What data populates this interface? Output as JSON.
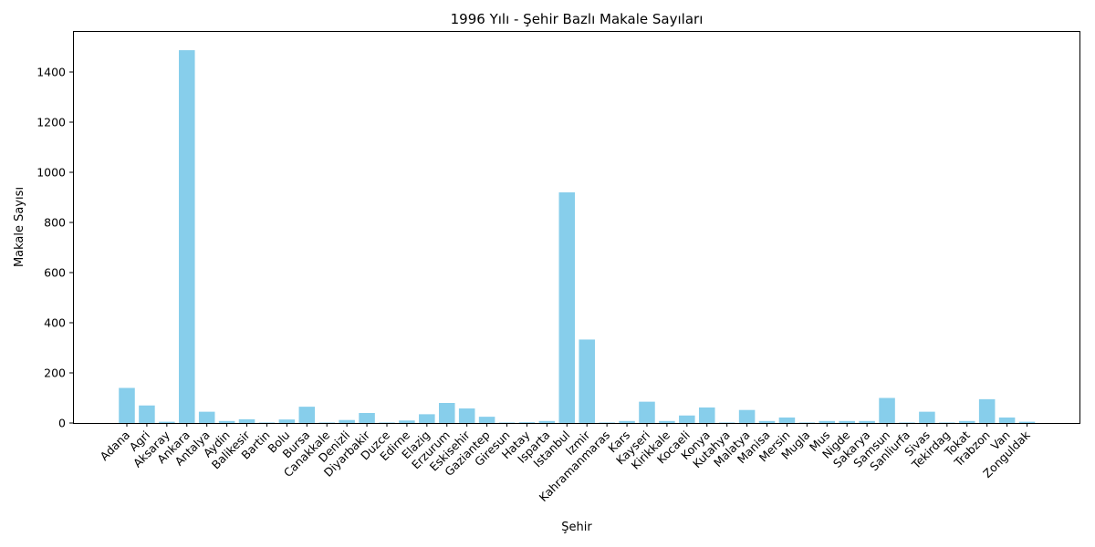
{
  "chart_data": {
    "type": "bar",
    "title": "1996 Yılı - Şehir Bazlı Makale Sayıları",
    "xlabel": "Şehir",
    "ylabel": "Makale Sayısı",
    "ylim": [
      0,
      1560
    ],
    "yticks": [
      0,
      200,
      400,
      600,
      800,
      1000,
      1200,
      1400
    ],
    "grid": false,
    "bar_color": "#87CEEB",
    "categories": [
      "Adana",
      "Agri",
      "Aksaray",
      "Ankara",
      "Antalya",
      "Aydin",
      "Balikesir",
      "Bartin",
      "Bolu",
      "Bursa",
      "Canakkale",
      "Denizli",
      "Diyarbakir",
      "Duzce",
      "Edirne",
      "Elazig",
      "Erzurum",
      "Eskisehir",
      "Gaziantep",
      "Giresun",
      "Hatay",
      "Isparta",
      "Istanbul",
      "Izmir",
      "Kahramanmaras",
      "Kars",
      "Kayseri",
      "Kirikkale",
      "Kocaeli",
      "Konya",
      "Kutahya",
      "Malatya",
      "Manisa",
      "Mersin",
      "Mugla",
      "Mus",
      "Nigde",
      "Sakarya",
      "Samsun",
      "Sanliurfa",
      "Sivas",
      "Tekirdag",
      "Tokat",
      "Trabzon",
      "Van",
      "Zonguldak"
    ],
    "values": [
      140,
      70,
      5,
      1487,
      45,
      8,
      15,
      2,
      14,
      65,
      2,
      12,
      40,
      2,
      10,
      35,
      80,
      58,
      25,
      2,
      3,
      8,
      920,
      333,
      2,
      8,
      85,
      8,
      30,
      62,
      2,
      52,
      8,
      22,
      2,
      8,
      8,
      8,
      100,
      2,
      45,
      2,
      8,
      95,
      22,
      5
    ]
  }
}
